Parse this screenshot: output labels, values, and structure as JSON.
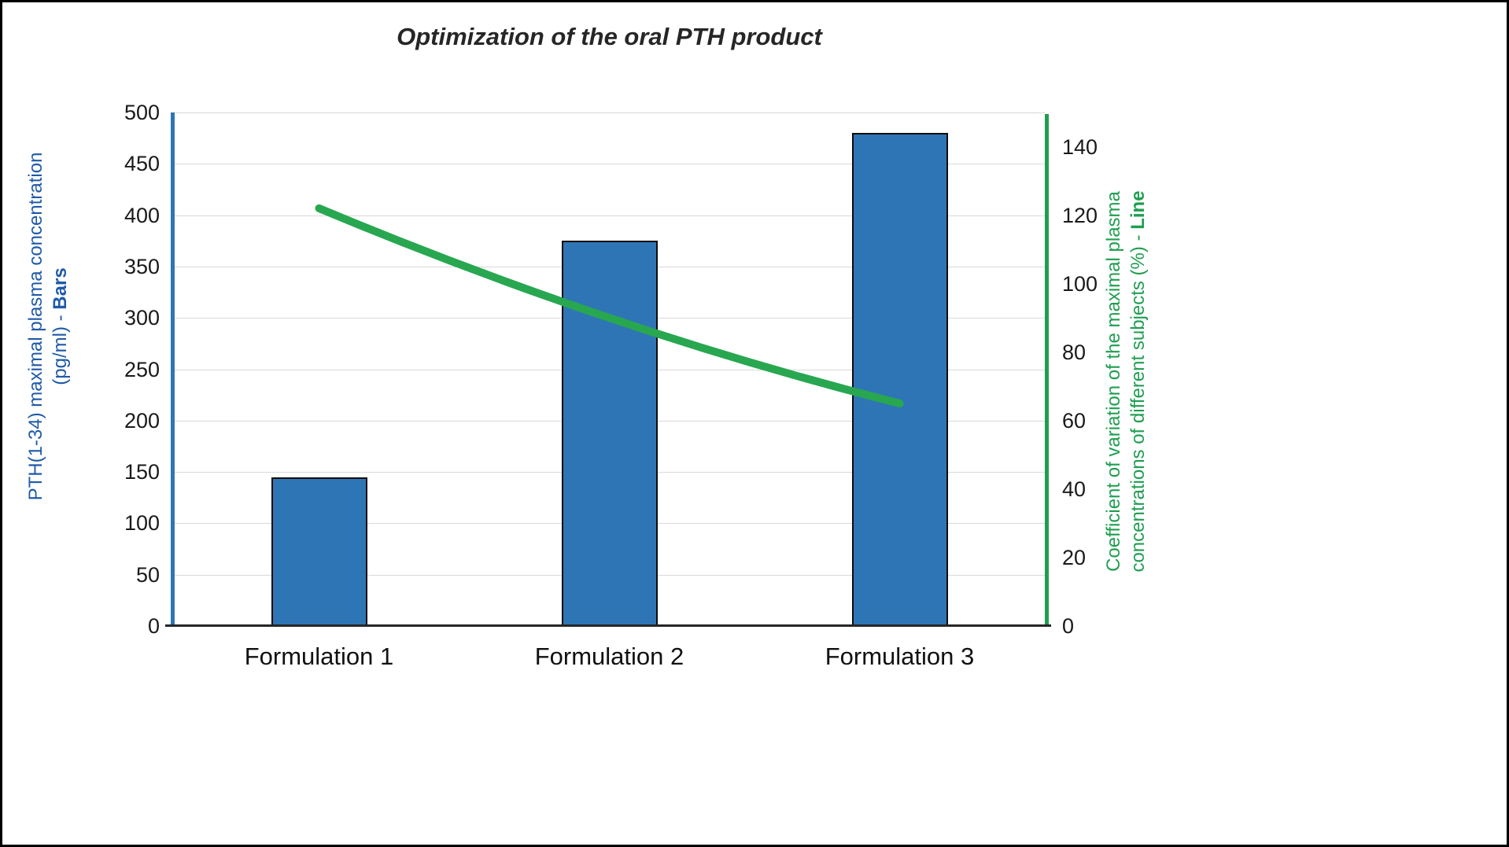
{
  "chart_data": {
    "type": "bar+line combo",
    "title": "Optimization of the oral PTH product",
    "categories": [
      "Formulation 1",
      "Formulation 2",
      "Formulation 3"
    ],
    "series": [
      {
        "name": "PTH(1-34) maximal plasma concentration (pg/ml) - Bars",
        "type": "bar",
        "axis": "left",
        "values": [
          145,
          375,
          480
        ],
        "color": "#2e75b6"
      },
      {
        "name": "Coefficient of variation of the maximal plasma concentrations of different subjects (%) - Line",
        "type": "line",
        "axis": "right",
        "values": [
          122,
          90,
          65
        ],
        "color": "#28a750"
      }
    ],
    "left_axis": {
      "label_line1": "PTH(1-34) maximal plasma concentration",
      "label_line2_prefix": "(pg/ml) - ",
      "label_line2_bold": "Bars",
      "min": 0,
      "max": 500,
      "ticks": [
        0,
        50,
        100,
        150,
        200,
        250,
        300,
        350,
        400,
        450,
        500
      ],
      "color": "#2e75b6"
    },
    "right_axis": {
      "label_line1": "Coefficient of variation of the maximal plasma",
      "label_line2_prefix": "concentrations of different subjects (%) - ",
      "label_line2_bold": "Line",
      "min": 0,
      "max": 150,
      "ticks": [
        0,
        20,
        40,
        60,
        80,
        100,
        120,
        140
      ],
      "color": "#1f9e50"
    },
    "grid": "horizontal",
    "legend": "none"
  }
}
